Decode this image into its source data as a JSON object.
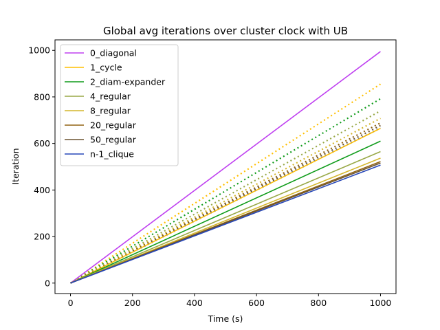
{
  "chart_data": {
    "type": "line",
    "title": "Global avg iterations over cluster clock with UB",
    "xlabel": "Time (s)",
    "ylabel": "Iteration",
    "xlim": [
      -50,
      1050
    ],
    "ylim": [
      -45,
      1045
    ],
    "xticks": [
      0,
      200,
      400,
      600,
      800,
      1000
    ],
    "yticks": [
      0,
      200,
      400,
      600,
      800,
      1000
    ],
    "grid": false,
    "legend_position": "top-left",
    "x": [
      0,
      1000
    ],
    "series": [
      {
        "name": "0_diagonal",
        "color": "#bf40f0",
        "values": [
          0,
          995
        ]
      },
      {
        "name": "1_cycle",
        "color": "#ffbf00",
        "values": [
          0,
          665
        ]
      },
      {
        "name": "2_diam-expander",
        "color": "#109c1b",
        "values": [
          0,
          610
        ]
      },
      {
        "name": "4_regular",
        "color": "#98a846",
        "values": [
          0,
          565
        ]
      },
      {
        "name": "8_regular",
        "color": "#d4b62c",
        "values": [
          0,
          537
        ]
      },
      {
        "name": "20_regular",
        "color": "#906210",
        "values": [
          0,
          522
        ]
      },
      {
        "name": "50_regular",
        "color": "#6b5430",
        "values": [
          0,
          516
        ]
      },
      {
        "name": "n-1_clique",
        "color": "#2646b8",
        "values": [
          0,
          507
        ]
      }
    ],
    "dotted_series": [
      {
        "color": "#ffbf00",
        "values": [
          0,
          855
        ]
      },
      {
        "color": "#109c1b",
        "values": [
          0,
          792
        ]
      },
      {
        "color": "#98a846",
        "values": [
          0,
          740
        ]
      },
      {
        "color": "#d4b62c",
        "values": [
          0,
          708
        ]
      },
      {
        "color": "#906210",
        "values": [
          0,
          688
        ]
      },
      {
        "color": "#6b5430",
        "values": [
          0,
          677
        ]
      },
      {
        "color": "#2646b8",
        "values": [
          0,
          666
        ]
      }
    ]
  }
}
